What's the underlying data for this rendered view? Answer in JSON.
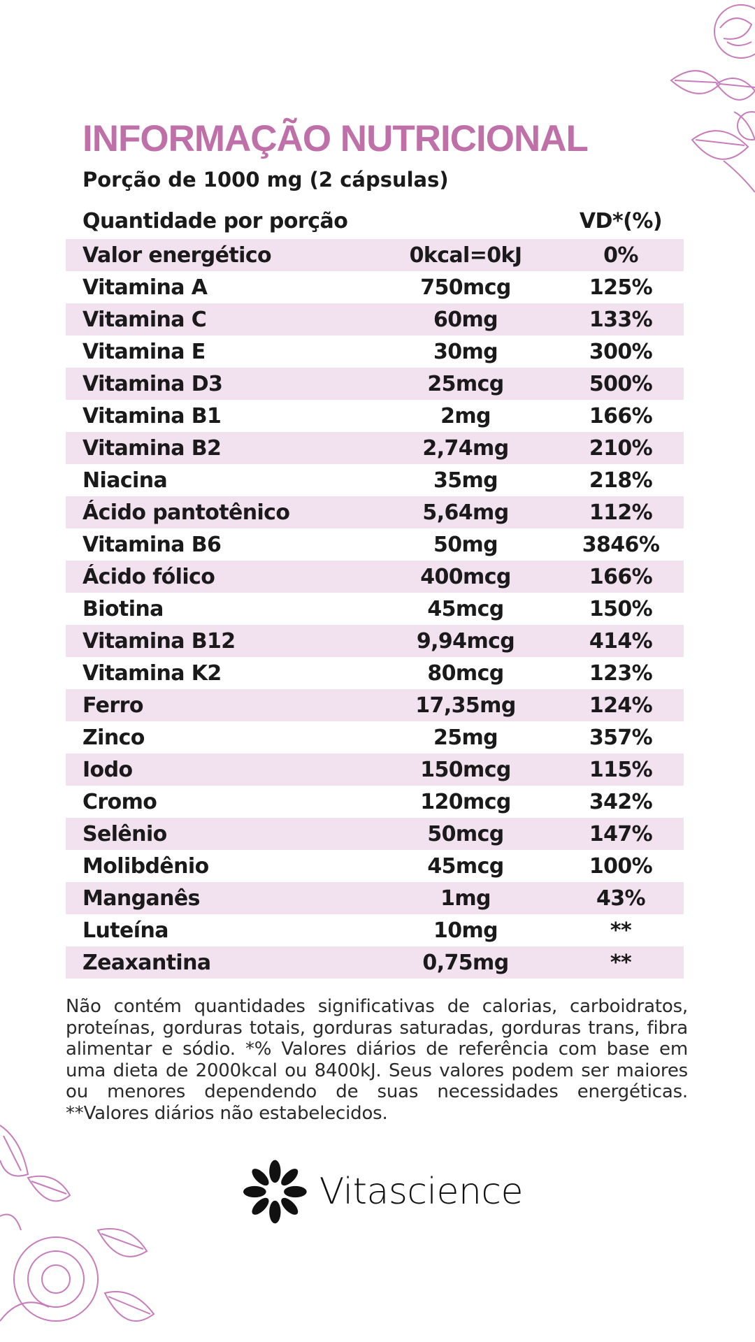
{
  "header": {
    "title": "INFORMAÇÃO NUTRICIONAL",
    "serving": "Porção de 1000 mg (2 cápsulas)"
  },
  "table": {
    "col_label": "Quantidade por porção",
    "col_vd": "VD*(%)",
    "rows": [
      {
        "name": "Valor energético",
        "qty": "0kcal=0kJ",
        "vd": "0%"
      },
      {
        "name": "Vitamina A",
        "qty": "750mcg",
        "vd": "125%"
      },
      {
        "name": "Vitamina C",
        "qty": "60mg",
        "vd": "133%"
      },
      {
        "name": "Vitamina E",
        "qty": "30mg",
        "vd": "300%"
      },
      {
        "name": "Vitamina D3",
        "qty": "25mcg",
        "vd": "500%"
      },
      {
        "name": "Vitamina B1",
        "qty": "2mg",
        "vd": "166%"
      },
      {
        "name": "Vitamina B2",
        "qty": "2,74mg",
        "vd": "210%"
      },
      {
        "name": "Niacina",
        "qty": "35mg",
        "vd": "218%"
      },
      {
        "name": "Ácido pantotênico",
        "qty": "5,64mg",
        "vd": "112%"
      },
      {
        "name": "Vitamina B6",
        "qty": "50mg",
        "vd": "3846%"
      },
      {
        "name": "Ácido fólico",
        "qty": "400mcg",
        "vd": "166%"
      },
      {
        "name": "Biotina",
        "qty": "45mcg",
        "vd": "150%"
      },
      {
        "name": "Vitamina B12",
        "qty": "9,94mcg",
        "vd": "414%"
      },
      {
        "name": "Vitamina K2",
        "qty": "80mcg",
        "vd": "123%"
      },
      {
        "name": "Ferro",
        "qty": "17,35mg",
        "vd": "124%"
      },
      {
        "name": "Zinco",
        "qty": "25mg",
        "vd": "357%"
      },
      {
        "name": "Iodo",
        "qty": "150mcg",
        "vd": "115%"
      },
      {
        "name": "Cromo",
        "qty": "120mcg",
        "vd": "342%"
      },
      {
        "name": "Selênio",
        "qty": "50mcg",
        "vd": "147%"
      },
      {
        "name": "Molibdênio",
        "qty": "45mcg",
        "vd": "100%"
      },
      {
        "name": "Manganês",
        "qty": "1mg",
        "vd": "43%"
      },
      {
        "name": "Luteína",
        "qty": "10mg",
        "vd": "**"
      },
      {
        "name": "Zeaxantina",
        "qty": "0,75mg",
        "vd": "**"
      }
    ]
  },
  "footnote": "Não contém quantidades significativas de calorias, carboidratos, proteínas, gorduras totais, gorduras saturadas, gorduras trans, fibra alimentar e sódio. *% Valores diários de referência com base em uma dieta de 2000kcal ou 8400kJ. Seus valores podem ser maiores ou menores dependendo de suas necessidades energéticas. **Valores diários não estabelecidos.",
  "brand": {
    "name": "Vitascience",
    "logo_icon": "leaf-cluster-icon"
  },
  "colors": {
    "accent": "#c070a8",
    "row_shade": "#f2e1ee",
    "floral": "#c77dbb"
  }
}
